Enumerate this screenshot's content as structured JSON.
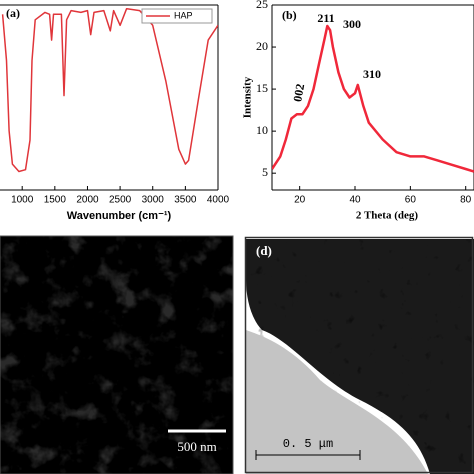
{
  "chart_data": [
    {
      "type": "line",
      "panel_label": "(a)",
      "x_label": "Wavenumber (cm⁻¹)",
      "x": [
        700,
        760,
        800,
        850,
        950,
        1050,
        1120,
        1150,
        1200,
        1350,
        1420,
        1450,
        1480,
        1600,
        1640,
        1680,
        1750,
        1900,
        2000,
        2050,
        2100,
        2250,
        2350,
        2400,
        2500,
        2600,
        2800,
        3000,
        3200,
        3400,
        3500,
        3550,
        3700,
        3850,
        4000
      ],
      "series": [
        {
          "name": "HAP",
          "color": "#e0353a",
          "values": [
            95,
            70,
            32,
            14,
            10,
            11,
            27,
            70,
            92,
            96,
            95,
            81,
            95,
            95,
            51,
            92,
            97,
            96,
            97,
            84,
            96,
            97,
            86,
            97,
            89,
            98,
            97,
            89,
            59,
            22,
            14,
            16,
            49,
            81,
            89
          ]
        }
      ],
      "xlim": [
        660,
        4000
      ],
      "ylim": [
        0,
        100
      ],
      "xticks": [
        1000,
        1500,
        2000,
        2500,
        3000,
        3500,
        4000
      ],
      "legend": "upper right"
    },
    {
      "type": "line",
      "panel_label": "(b)",
      "x_label": "2 Theta (deg)",
      "y_label": "Intensity",
      "x": [
        10,
        13,
        15,
        17,
        19,
        21,
        23,
        25,
        27,
        29,
        30,
        31,
        32,
        34,
        36,
        38,
        40,
        41,
        43,
        45,
        50,
        55,
        60,
        65,
        70,
        75,
        80,
        83
      ],
      "series": [
        {
          "color": "#f0283a",
          "values": [
            5.5,
            7,
            9,
            11.5,
            12,
            12,
            13,
            15,
            18,
            21,
            22.5,
            22,
            20,
            17,
            15,
            14,
            14.5,
            15.5,
            13,
            11,
            9,
            7.5,
            7,
            7,
            6.5,
            6,
            5.5,
            5.2
          ]
        }
      ],
      "annotations": [
        "002",
        "211",
        "300",
        "310"
      ],
      "xlim": [
        10,
        83
      ],
      "ylim": [
        3,
        25
      ],
      "xticks": [
        20,
        40,
        60,
        80
      ],
      "yticks": [
        5,
        10,
        15,
        20,
        25
      ]
    }
  ],
  "images": [
    {
      "scale_bar": "500 nm"
    },
    {
      "panel_label": "(d)",
      "scale_bar": "0. 5  μm"
    }
  ]
}
